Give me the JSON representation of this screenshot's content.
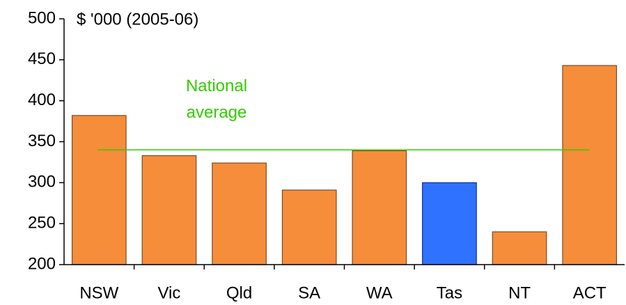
{
  "chart_data": {
    "type": "bar",
    "y_label": "$ '000 (2005-06)",
    "categories": [
      "NSW",
      "Vic",
      "Qld",
      "SA",
      "WA",
      "Tas",
      "NT",
      "ACT"
    ],
    "values": [
      382,
      333,
      324,
      291,
      339,
      300,
      240,
      443
    ],
    "colors": [
      "#f68d3a",
      "#f68d3a",
      "#f68d3a",
      "#f68d3a",
      "#f68d3a",
      "#2f72ff",
      "#f68d3a",
      "#f68d3a"
    ],
    "ylim": [
      200,
      500
    ],
    "yticks": [
      200,
      250,
      300,
      350,
      400,
      450,
      500
    ],
    "grid": false,
    "reference_line": {
      "label": "National average",
      "value": 340,
      "color": "#33cc00"
    }
  }
}
